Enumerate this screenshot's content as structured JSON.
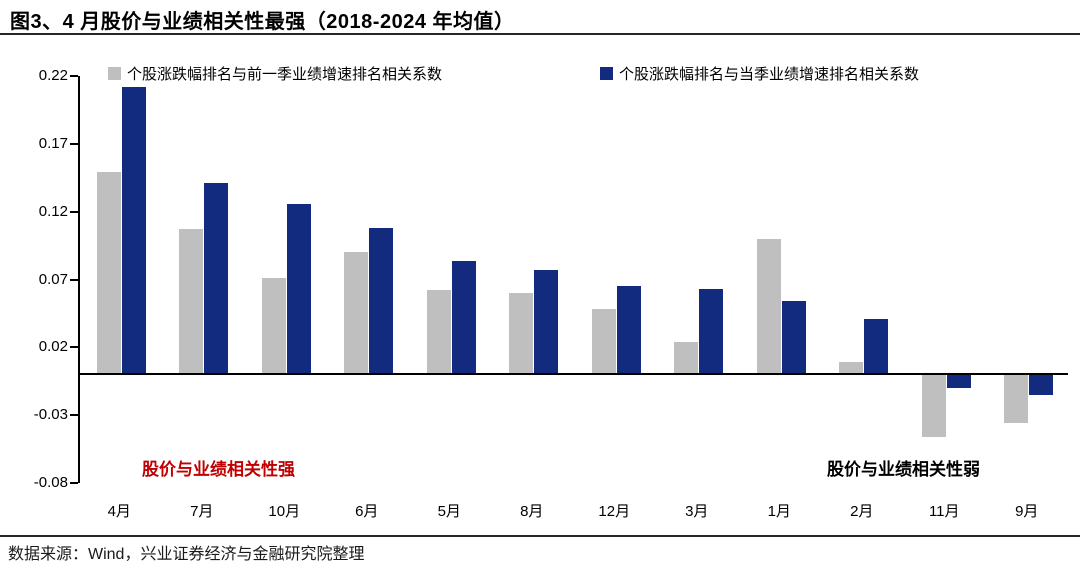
{
  "title": "图3、4 月股价与业绩相关性最强（2018-2024 年均值）",
  "footer": "数据来源：Wind，兴业证券经济与金融研究院整理",
  "annotations": {
    "left": "股价与业绩相关性强",
    "right": "股价与业绩相关性弱"
  },
  "colors": {
    "prev_series": "#BFBFBF",
    "curr_series": "#132B7E",
    "annotation_left": "#C00000",
    "annotation_right": "#000000",
    "axis": "#000000"
  },
  "chart_data": {
    "type": "bar",
    "categories": [
      "4月",
      "7月",
      "10月",
      "6月",
      "5月",
      "8月",
      "12月",
      "3月",
      "1月",
      "2月",
      "11月",
      "9月"
    ],
    "series": [
      {
        "name": "个股涨跌幅排名与前一季业绩增速排名相关系数",
        "color": "#BFBFBF",
        "values": [
          0.149,
          0.107,
          0.071,
          0.09,
          0.062,
          0.06,
          0.048,
          0.024,
          0.1,
          0.009,
          -0.046,
          -0.036
        ]
      },
      {
        "name": "个股涨跌幅排名与当季业绩增速排名相关系数",
        "color": "#132B7E",
        "values": [
          0.212,
          0.141,
          0.126,
          0.108,
          0.084,
          0.077,
          0.065,
          0.063,
          0.054,
          0.041,
          -0.01,
          -0.015
        ]
      }
    ],
    "ylim": [
      -0.08,
      0.22
    ],
    "yticks": [
      0.22,
      0.17,
      0.12,
      0.07,
      0.02,
      -0.03,
      -0.08
    ],
    "grid": false,
    "legend_position": "top"
  }
}
